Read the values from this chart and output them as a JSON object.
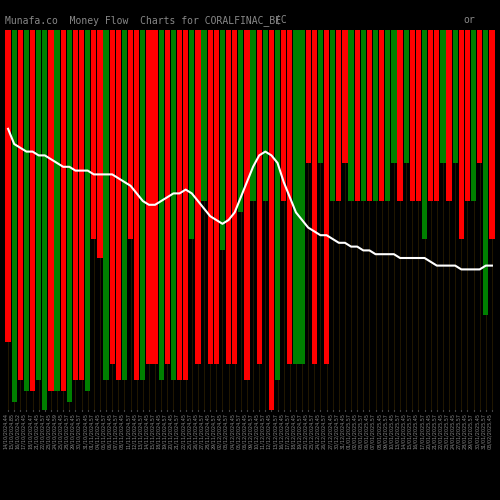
{
  "title": "Munafa.co  Money Flow  Charts for CORALFINAC_BE",
  "title2": "(C",
  "title3": "or",
  "background_color": "#000000",
  "bar_colors": [
    "red",
    "green",
    "red",
    "green",
    "red",
    "green",
    "green",
    "red",
    "green",
    "red",
    "green",
    "red",
    "red",
    "green",
    "red",
    "red",
    "green",
    "red",
    "red",
    "green",
    "red",
    "red",
    "green",
    "red",
    "red",
    "green",
    "red",
    "green",
    "red",
    "red",
    "green",
    "red",
    "green",
    "red",
    "red",
    "green",
    "red",
    "red",
    "green",
    "red",
    "green",
    "red",
    "green",
    "red",
    "green",
    "red",
    "red",
    "green",
    "green",
    "red",
    "red",
    "green",
    "red",
    "green",
    "red",
    "red",
    "green",
    "red",
    "green",
    "red",
    "green",
    "red",
    "green",
    "green",
    "red",
    "green",
    "red",
    "red",
    "green",
    "red",
    "red",
    "green",
    "red",
    "green",
    "red",
    "red",
    "green",
    "red",
    "green",
    "red"
  ],
  "bar_heights": [
    82,
    98,
    92,
    95,
    95,
    92,
    100,
    95,
    95,
    95,
    98,
    92,
    92,
    95,
    55,
    60,
    92,
    88,
    92,
    92,
    55,
    92,
    92,
    88,
    88,
    92,
    88,
    92,
    92,
    92,
    55,
    88,
    45,
    88,
    88,
    58,
    88,
    88,
    48,
    92,
    45,
    88,
    45,
    100,
    92,
    45,
    88,
    88,
    88,
    35,
    88,
    35,
    88,
    45,
    45,
    35,
    45,
    45,
    45,
    45,
    45,
    45,
    45,
    35,
    45,
    35,
    45,
    45,
    55,
    45,
    45,
    35,
    45,
    35,
    55,
    45,
    45,
    35,
    75,
    55
  ],
  "line_values": [
    74,
    70,
    69,
    68,
    68,
    67,
    67,
    66,
    65,
    64,
    64,
    63,
    63,
    63,
    62,
    62,
    62,
    62,
    61,
    60,
    59,
    57,
    55,
    54,
    54,
    55,
    56,
    57,
    57,
    58,
    57,
    55,
    53,
    51,
    50,
    49,
    50,
    52,
    56,
    60,
    64,
    67,
    68,
    67,
    65,
    60,
    56,
    52,
    50,
    48,
    47,
    46,
    46,
    45,
    44,
    44,
    43,
    43,
    42,
    42,
    41,
    41,
    41,
    41,
    40,
    40,
    40,
    40,
    40,
    39,
    38,
    38,
    38,
    38,
    37,
    37,
    37,
    37,
    38,
    38
  ],
  "n_bars": 80,
  "ymax": 100,
  "line_color": "#ffffff",
  "line_width": 1.5,
  "bar_width": 0.85,
  "title_color": "#888888",
  "tick_color": "#888888",
  "xlabel_fontsize": 3.5,
  "title_fontsize": 7,
  "dark_line_color": "#3a2800"
}
